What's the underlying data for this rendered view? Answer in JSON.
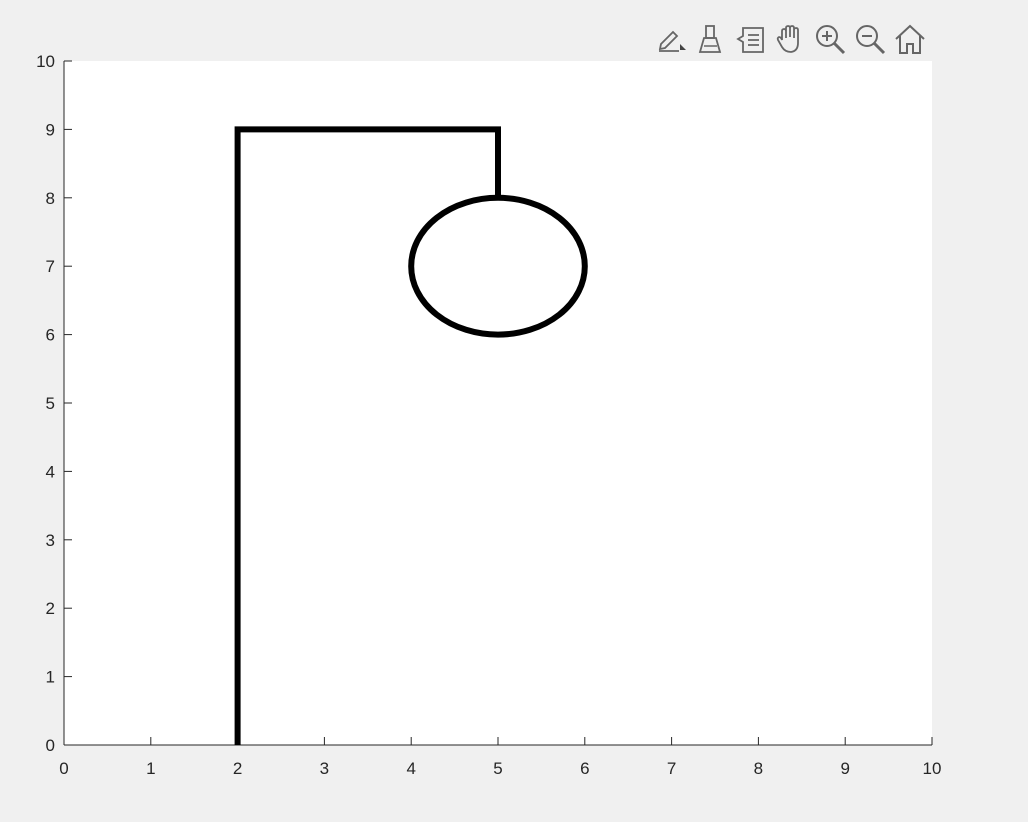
{
  "toolbar": {
    "buttons": [
      {
        "name": "edit-plot-button",
        "icon": "pencil-icon"
      },
      {
        "name": "brush-button",
        "icon": "brush-icon"
      },
      {
        "name": "data-tips-button",
        "icon": "data-tips-icon"
      },
      {
        "name": "pan-button",
        "icon": "hand-icon"
      },
      {
        "name": "zoom-in-button",
        "icon": "zoom-in-icon"
      },
      {
        "name": "zoom-out-button",
        "icon": "zoom-out-icon"
      },
      {
        "name": "home-button",
        "icon": "home-icon"
      }
    ]
  },
  "colors": {
    "figure_background": "#f0f0f0",
    "axes_background": "#ffffff",
    "line": "#000000",
    "axis": "#262626"
  },
  "chart_data": {
    "type": "line",
    "title": "",
    "xlabel": "",
    "ylabel": "",
    "xlim": [
      0,
      10
    ],
    "ylim": [
      0,
      10
    ],
    "grid": false,
    "xticks": [
      "0",
      "1",
      "2",
      "3",
      "4",
      "5",
      "6",
      "7",
      "8",
      "9",
      "10"
    ],
    "yticks": [
      "0",
      "1",
      "2",
      "3",
      "4",
      "5",
      "6",
      "7",
      "8",
      "9",
      "10"
    ],
    "series": [
      {
        "x": [
          2,
          2,
          5,
          5
        ],
        "y": [
          0,
          9,
          9,
          8
        ]
      }
    ],
    "ellipses": [
      {
        "cx": 5,
        "cy": 7,
        "rx": 1,
        "ry": 1
      }
    ]
  }
}
